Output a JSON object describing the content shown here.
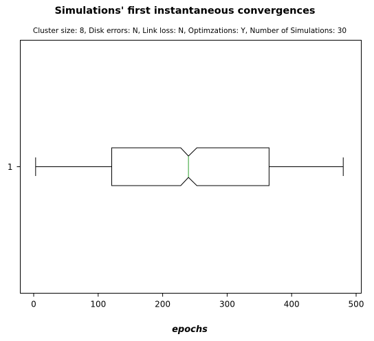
{
  "chart_data": {
    "type": "boxplot",
    "title": "Simulations' first instantaneous convergences",
    "subtitle": "Cluster size: 8, Disk errors: N, Link loss: N, Optimzations: Y, Number of Simulations: 30",
    "xlabel": "epochs",
    "ylabel": "",
    "orientation": "horizontal",
    "notched": true,
    "xlim": [
      -20,
      505
    ],
    "xticks": [
      0,
      100,
      200,
      300,
      400,
      500
    ],
    "categories": [
      "1"
    ],
    "boxes": [
      {
        "label": "1",
        "whisker_low": 3,
        "q1": 121,
        "median": 240,
        "q3": 365,
        "whisker_high": 480,
        "notch_low": 228,
        "notch_high": 253
      }
    ],
    "colors": {
      "box": "#000000",
      "median": "#2ca02c"
    }
  }
}
